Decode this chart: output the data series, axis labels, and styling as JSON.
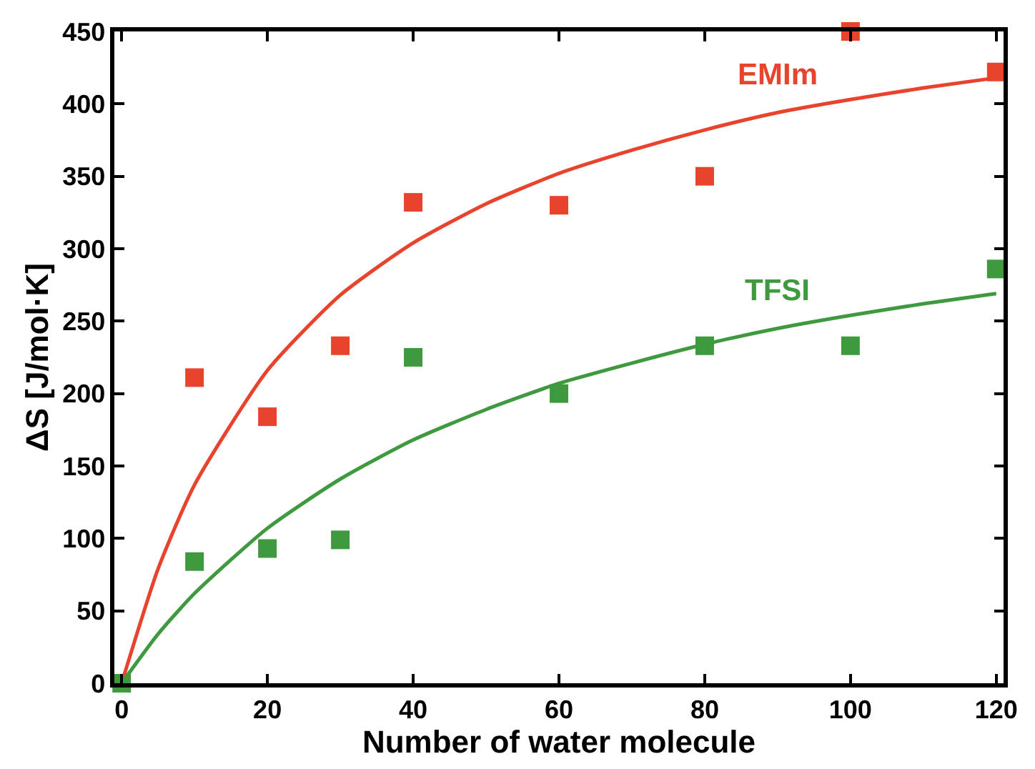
{
  "chart_data": {
    "type": "scatter",
    "xlabel": "Number of water molecule",
    "ylabel": "ΔS [J/mol·K]",
    "xlim": [
      -1,
      121
    ],
    "xticks": [
      0,
      20,
      40,
      60,
      80,
      100,
      120
    ],
    "ylim": [
      0,
      450
    ],
    "yticks": [
      0,
      50,
      100,
      150,
      200,
      250,
      300,
      350,
      400,
      450
    ],
    "grid": false,
    "marker": "square",
    "series": [
      {
        "name": "EMIm",
        "color": "#e8432d",
        "x": [
          10,
          20,
          30,
          40,
          60,
          80,
          100,
          120
        ],
        "values": [
          211,
          184,
          233,
          332,
          330,
          350,
          450,
          422
        ]
      },
      {
        "name": "TFSI",
        "color": "#3f9a3f",
        "x": [
          0,
          10,
          20,
          30,
          40,
          60,
          80,
          100,
          120
        ],
        "values": [
          0,
          84,
          93,
          99,
          225,
          200,
          233,
          233,
          286
        ]
      },
      {
        "type": "line",
        "marker": "none",
        "color": "#e8432d",
        "x": [
          0,
          5,
          10,
          20,
          30,
          40,
          50,
          60,
          70,
          80,
          90,
          100,
          110,
          120
        ],
        "values": [
          0,
          79,
          137,
          216,
          268,
          304,
          331,
          352,
          368,
          382,
          394,
          403,
          411,
          418
        ]
      },
      {
        "type": "line",
        "marker": "none",
        "color": "#3f9a3f",
        "x": [
          0,
          5,
          10,
          20,
          30,
          40,
          50,
          60,
          70,
          80,
          90,
          100,
          110,
          120
        ],
        "values": [
          0,
          34,
          62,
          107,
          141,
          168,
          189,
          207,
          221,
          234,
          245,
          254,
          262,
          269
        ]
      }
    ]
  }
}
